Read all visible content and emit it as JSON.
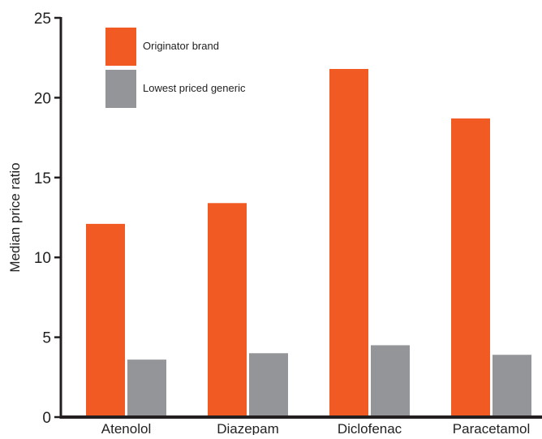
{
  "chart_data": {
    "type": "bar",
    "title": "",
    "xlabel": "",
    "ylabel": "Median price ratio",
    "ylim": [
      0,
      25
    ],
    "yticks": [
      0,
      5,
      10,
      15,
      20,
      25
    ],
    "grid": false,
    "legend_position": "top-left",
    "categories": [
      "Atenolol",
      "Diazepam",
      "Diclofenac",
      "Paracetamol"
    ],
    "series": [
      {
        "name": "Originator brand",
        "color": "#f15a22",
        "values": [
          12.1,
          13.4,
          21.8,
          18.7
        ]
      },
      {
        "name": "Lowest priced generic",
        "color": "#939598",
        "values": [
          3.6,
          4.0,
          4.5,
          3.9
        ]
      }
    ]
  }
}
